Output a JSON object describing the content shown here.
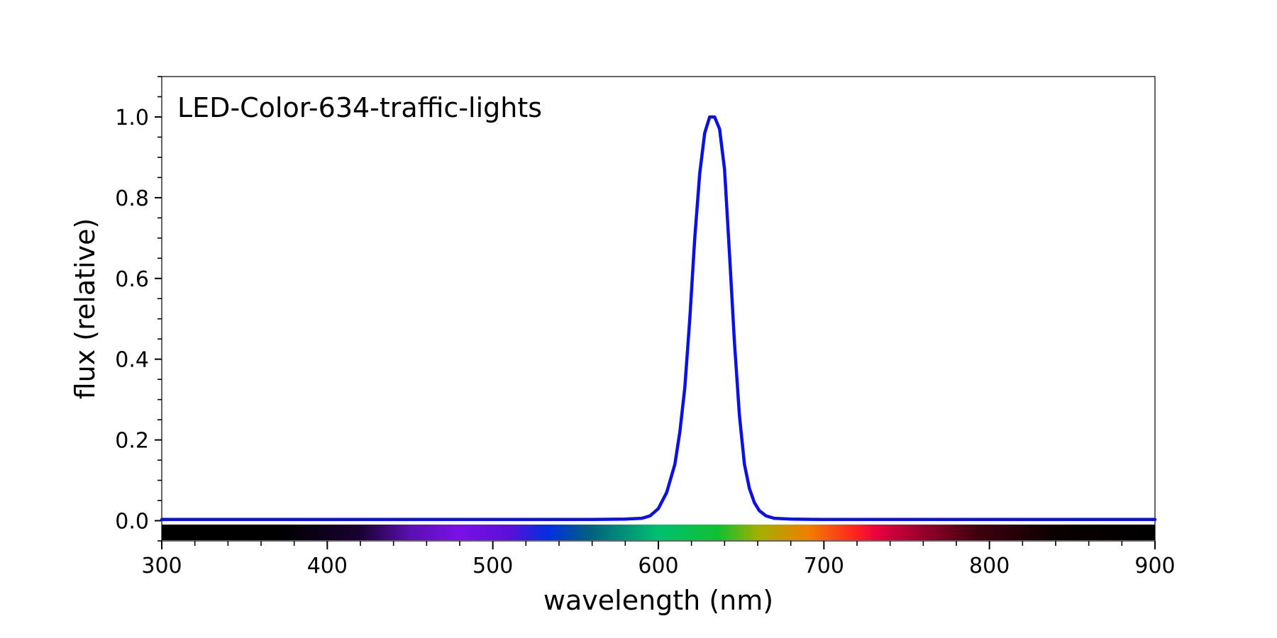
{
  "chart_data": {
    "type": "line",
    "title": "LED-Color-634-traffic-lights",
    "xlabel": "wavelength (nm)",
    "ylabel": "flux (relative)",
    "xlim": [
      300,
      900
    ],
    "ylim": [
      -0.05,
      1.1
    ],
    "x_ticks": [
      300,
      400,
      500,
      600,
      700,
      800,
      900
    ],
    "x_tick_labels": [
      "300",
      "400",
      "500",
      "600",
      "700",
      "800",
      "900"
    ],
    "y_ticks": [
      0.0,
      0.2,
      0.4,
      0.6,
      0.8,
      1.0
    ],
    "y_tick_labels": [
      "0.0",
      "0.2",
      "0.4",
      "0.6",
      "0.8",
      "1.0"
    ],
    "grid": false,
    "spectrum_bar": true,
    "line_color": "#0a10e6",
    "series": [
      {
        "x": [
          300,
          400,
          500,
          560,
          580,
          590,
          595,
          600,
          605,
          610,
          613,
          616,
          619,
          622,
          625,
          628,
          631,
          634,
          637,
          640,
          643,
          646,
          649,
          652,
          655,
          658,
          661,
          665,
          670,
          680,
          700,
          800,
          900
        ],
        "y": [
          0.003,
          0.003,
          0.003,
          0.003,
          0.004,
          0.006,
          0.012,
          0.03,
          0.07,
          0.14,
          0.22,
          0.33,
          0.5,
          0.7,
          0.86,
          0.96,
          1.0,
          1.0,
          0.97,
          0.87,
          0.66,
          0.44,
          0.26,
          0.14,
          0.08,
          0.045,
          0.025,
          0.012,
          0.006,
          0.004,
          0.003,
          0.003,
          0.003
        ]
      }
    ]
  }
}
